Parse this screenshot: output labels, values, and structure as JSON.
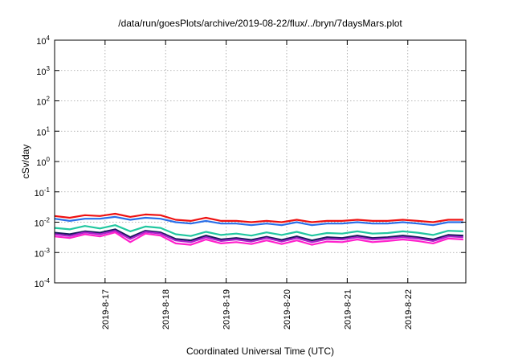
{
  "chart_data": {
    "type": "line",
    "title": "/data/run/goesPlots/archive/2019-08-22/flux/../bryn/7daysMars.plot",
    "xlabel": "Coordinated Universal Time (UTC)",
    "ylabel": "cSv/day",
    "yscale": "log",
    "ylim": [
      0.0001,
      10000
    ],
    "xlim": [
      "2019-08-16 04:00",
      "2019-08-22 23:00"
    ],
    "grid": true,
    "y_ticks": [
      {
        "base": "10",
        "exp": "-4"
      },
      {
        "base": "10",
        "exp": "-3"
      },
      {
        "base": "10",
        "exp": "-2"
      },
      {
        "base": "10",
        "exp": "-1"
      },
      {
        "base": "10",
        "exp": "0"
      },
      {
        "base": "10",
        "exp": "1"
      },
      {
        "base": "10",
        "exp": "2"
      },
      {
        "base": "10",
        "exp": "3"
      },
      {
        "base": "10",
        "exp": "4"
      }
    ],
    "x_ticks": [
      "2019-8-17",
      "2019-8-18",
      "2019-8-19",
      "2019-8-20",
      "2019-8-21",
      "2019-8-22"
    ],
    "x": [
      "2019-08-16 04:00",
      "2019-08-16 10:00",
      "2019-08-16 16:00",
      "2019-08-16 22:00",
      "2019-08-17 04:00",
      "2019-08-17 10:00",
      "2019-08-17 16:00",
      "2019-08-17 22:00",
      "2019-08-18 04:00",
      "2019-08-18 10:00",
      "2019-08-18 16:00",
      "2019-08-18 22:00",
      "2019-08-19 04:00",
      "2019-08-19 10:00",
      "2019-08-19 16:00",
      "2019-08-19 22:00",
      "2019-08-20 04:00",
      "2019-08-20 10:00",
      "2019-08-20 16:00",
      "2019-08-20 22:00",
      "2019-08-21 04:00",
      "2019-08-21 10:00",
      "2019-08-21 16:00",
      "2019-08-21 22:00",
      "2019-08-22 04:00",
      "2019-08-22 10:00",
      "2019-08-22 16:00",
      "2019-08-22 22:00"
    ],
    "series": [
      {
        "color": "#ee1111",
        "values": [
          0.016,
          0.014,
          0.017,
          0.016,
          0.019,
          0.015,
          0.018,
          0.017,
          0.012,
          0.011,
          0.014,
          0.011,
          0.011,
          0.01,
          0.011,
          0.01,
          0.012,
          0.01,
          0.011,
          0.011,
          0.012,
          0.011,
          0.011,
          0.012,
          0.011,
          0.01,
          0.012,
          0.012
        ]
      },
      {
        "color": "#2a6fe8",
        "values": [
          0.013,
          0.011,
          0.013,
          0.013,
          0.015,
          0.012,
          0.014,
          0.013,
          0.01,
          0.009,
          0.011,
          0.009,
          0.009,
          0.008,
          0.009,
          0.008,
          0.01,
          0.008,
          0.009,
          0.009,
          0.01,
          0.009,
          0.009,
          0.01,
          0.009,
          0.008,
          0.01,
          0.01
        ]
      },
      {
        "color": "#22c7a0",
        "values": [
          0.0065,
          0.0058,
          0.0075,
          0.0062,
          0.008,
          0.005,
          0.0072,
          0.0065,
          0.004,
          0.0035,
          0.0048,
          0.0038,
          0.0042,
          0.0036,
          0.0046,
          0.0038,
          0.0048,
          0.0036,
          0.0044,
          0.0042,
          0.005,
          0.0042,
          0.0044,
          0.005,
          0.0045,
          0.0038,
          0.0052,
          0.005
        ]
      },
      {
        "color": "#1a1a5e",
        "values": [
          0.0045,
          0.004,
          0.005,
          0.0045,
          0.0058,
          0.0032,
          0.0052,
          0.0046,
          0.0028,
          0.0025,
          0.0036,
          0.0027,
          0.003,
          0.0026,
          0.0033,
          0.0026,
          0.0034,
          0.0025,
          0.0032,
          0.003,
          0.0036,
          0.003,
          0.0032,
          0.0036,
          0.0032,
          0.0027,
          0.0038,
          0.0036
        ]
      },
      {
        "color": "#aa22cc",
        "values": [
          0.004,
          0.0035,
          0.0046,
          0.004,
          0.0052,
          0.0028,
          0.0048,
          0.0042,
          0.0025,
          0.0022,
          0.0032,
          0.0024,
          0.0027,
          0.0023,
          0.003,
          0.0023,
          0.003,
          0.0022,
          0.0028,
          0.0027,
          0.0032,
          0.0027,
          0.0029,
          0.0032,
          0.0029,
          0.0024,
          0.0034,
          0.0032
        ]
      },
      {
        "color": "#ff22cc",
        "values": [
          0.0034,
          0.003,
          0.004,
          0.0034,
          0.0046,
          0.0022,
          0.0042,
          0.0036,
          0.002,
          0.0018,
          0.0027,
          0.002,
          0.0022,
          0.0019,
          0.0025,
          0.0019,
          0.0025,
          0.0018,
          0.0023,
          0.0022,
          0.0027,
          0.0022,
          0.0024,
          0.0027,
          0.0024,
          0.002,
          0.0029,
          0.0027
        ]
      }
    ]
  }
}
